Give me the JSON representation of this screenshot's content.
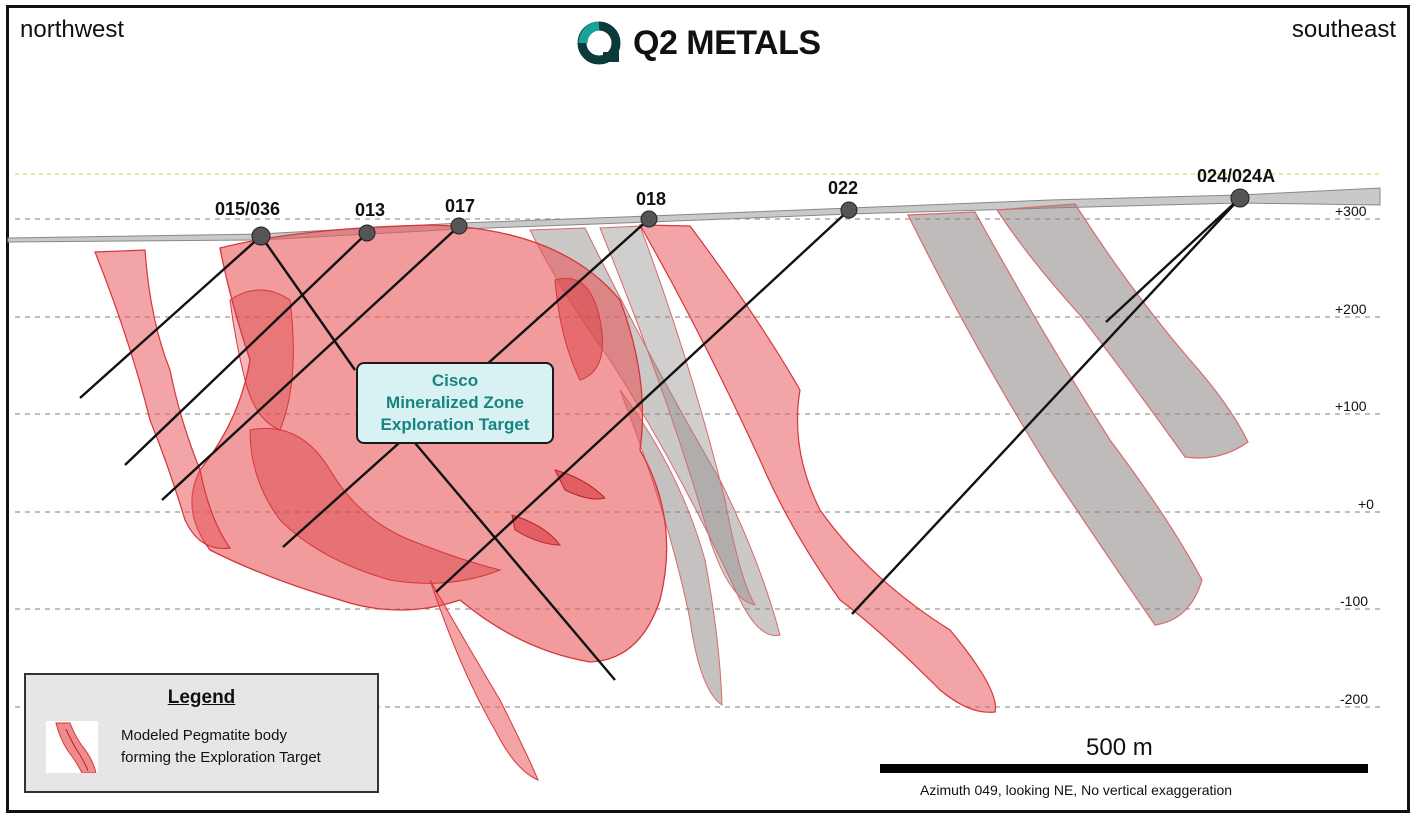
{
  "header": {
    "left_direction": "northwest",
    "right_direction": "southeast",
    "logo_text": "Q2 METALS",
    "logo_colors": {
      "ring": "#0b3a3a",
      "accent": "#17a398"
    }
  },
  "elevation_labels": [
    "+300",
    "+200",
    "+100",
    "+0",
    "-100",
    "-200"
  ],
  "drill_collars": [
    "015/036",
    "013",
    "017",
    "018",
    "022",
    "024/024A"
  ],
  "callout": {
    "lines": [
      "Cisco",
      "Mineralized Zone",
      "Exploration Target"
    ]
  },
  "legend": {
    "title": "Legend",
    "item_label_line1": "Modeled Pegmatite body",
    "item_label_line2": "forming the Exploration Target"
  },
  "scale": {
    "label": "500 m",
    "note": "Azimuth 049, looking NE, No vertical exaggeration"
  },
  "colors": {
    "pegmatite_fill": "#e8595c",
    "pegmatite_stroke": "#d8353a",
    "grey_body": "#8c8484",
    "callout_bg": "#d8f2f4",
    "callout_text": "#18837f"
  }
}
